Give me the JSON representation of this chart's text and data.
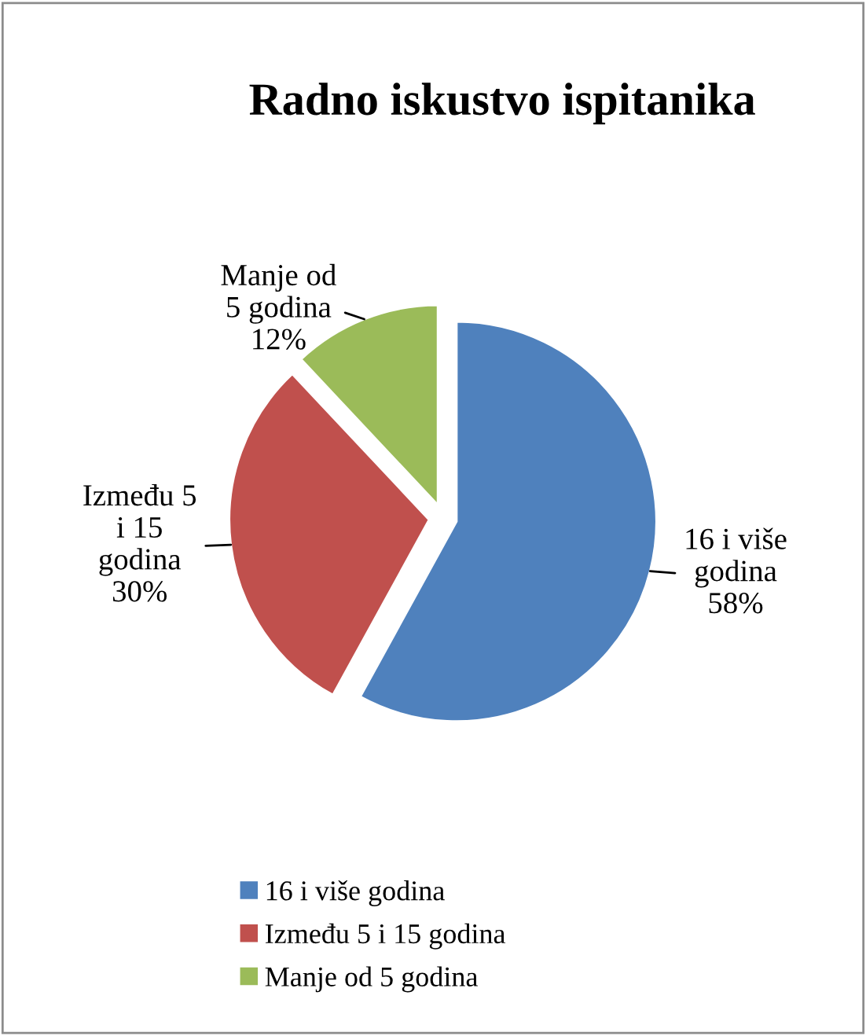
{
  "chart_data": {
    "type": "pie",
    "title": "Radno iskustvo ispitanika",
    "categories": [
      "16 i više godina",
      "Između 5 i 15 godina",
      "Manje od 5 godina"
    ],
    "values": [
      58,
      30,
      12
    ],
    "colors": [
      "#4f81bd",
      "#c0504d",
      "#9bbb59"
    ],
    "value_labels": [
      "58%",
      "30%",
      "12%"
    ],
    "legend": "bottom"
  }
}
